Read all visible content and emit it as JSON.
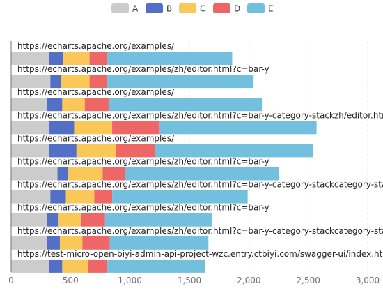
{
  "chart_data": {
    "type": "bar",
    "orientation": "horizontal",
    "stacked": true,
    "legend_position": "top-center",
    "grid": "vertical-dashed",
    "xlim": [
      0,
      3000
    ],
    "x_ticks": [
      0,
      500,
      1000,
      1500,
      2000,
      2500,
      3000
    ],
    "x_tick_labels": [
      "0",
      "500",
      "1,000",
      "1,500",
      "2,000",
      "2,500",
      "3,000"
    ],
    "categories": [
      "https://echarts.apache.org/examples/",
      "https://echarts.apache.org/examples/zh/editor.html?c=bar-y",
      "https://echarts.apache.org/examples/",
      "https://echarts.apache.org/examples/zh/editor.html?c=bar-y-category-stackzh/editor.html?.",
      "https://echarts.apache.org/examples/",
      "https://echarts.apache.org/examples/zh/editor.html?c=bar-y",
      "https://echarts.apache.org/examples/zh/editor.html?c=bar-y-category-stackcategory-stack",
      "https://echarts.apache.org/examples/zh/editor.html?c=bar-y",
      "https://echarts.apache.org/examples/zh/editor.html?c=bar-y-category-stackcategory-stack",
      "https://test-micro-open-biyi-admin-api-project-wzc.entry.ctbiyi.com/swagger-ui/index.htm"
    ],
    "series": [
      {
        "name": "A",
        "color": "#cccccc",
        "values": [
          320,
          330,
          300,
          320,
          320,
          390,
          330,
          300,
          300,
          320
        ]
      },
      {
        "name": "B",
        "color": "#5470c6",
        "values": [
          120,
          90,
          130,
          210,
          230,
          90,
          130,
          100,
          110,
          110
        ]
      },
      {
        "name": "C",
        "color": "#fac858",
        "values": [
          220,
          240,
          190,
          320,
          330,
          290,
          240,
          190,
          190,
          220
        ]
      },
      {
        "name": "D",
        "color": "#ee6666",
        "values": [
          150,
          150,
          200,
          400,
          330,
          190,
          150,
          200,
          230,
          160
        ]
      },
      {
        "name": "E",
        "color": "#73c0de",
        "values": [
          1050,
          1230,
          1290,
          1320,
          1330,
          1290,
          1140,
          900,
          830,
          820
        ]
      }
    ]
  }
}
